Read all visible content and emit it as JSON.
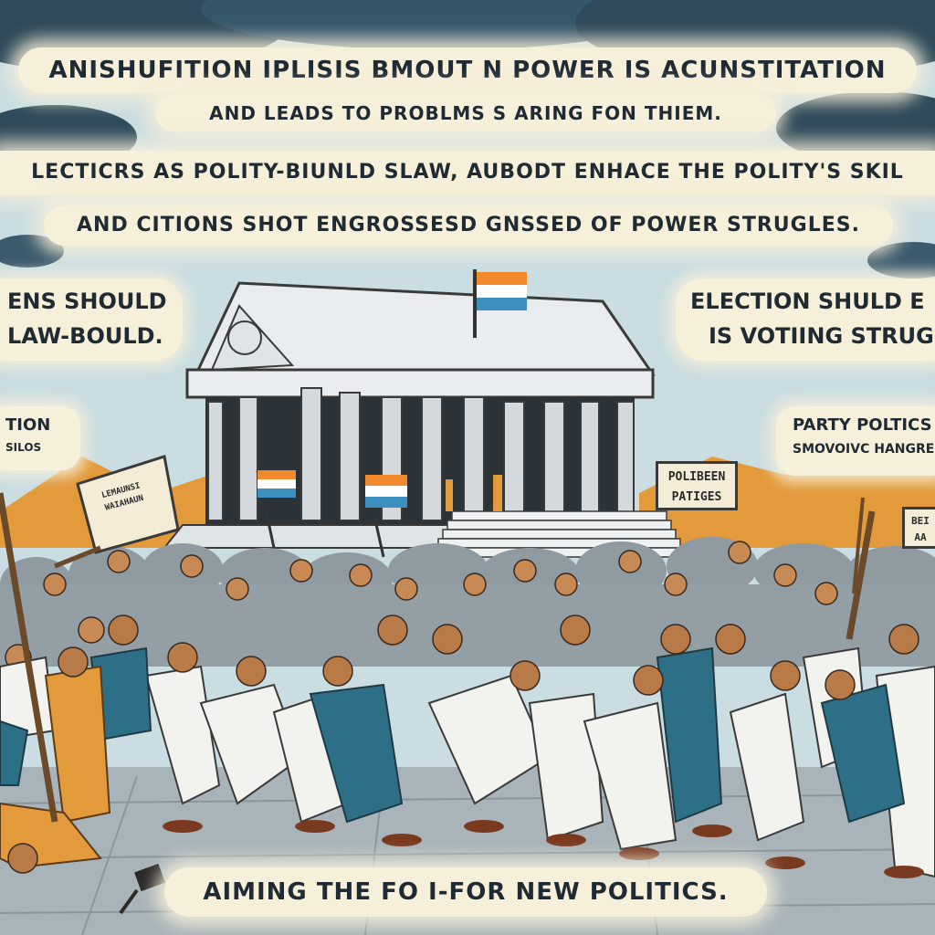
{
  "banners": {
    "line1": "ANISHUFITION IPLISIS BMOUT N POWER IS ACUNSTITATION",
    "line2": "AND LEADS TO PROBLMS S ARING FON THIEM.",
    "line3": "LECTICRS AS POLITY-BIUNLD SLAW, AUBODT ENHACE THE POLITY'S SKIL",
    "line4": "AND CITIONS SHOT ENGROSSESD GNSSED OF POWER STRUGLES.",
    "bottom": "AIMING THE FO I-FOR NEW POLITICS."
  },
  "side_left": {
    "line1": "ENS SHOULD",
    "line2": "LAW-BOULD.",
    "partial_title": "TION",
    "partial_sub": "SILOS"
  },
  "side_right": {
    "line1": "ELECTION SHULD E",
    "line2": "IS VOTIING STRUGL",
    "party_title": "PARTY POLTICS",
    "party_sub": "SMOVOIVC HANGRE"
  },
  "signs": {
    "center_sign_line1": "POLIBEEN",
    "center_sign_line2": "PATIGES",
    "right_edge_sign_line1": "BEI",
    "right_edge_sign_line2": "AA",
    "left_sign": "LEMAUNSI WAIAHAUN"
  },
  "colors": {
    "sky": "#c9dde2",
    "cloud_dark": "#2f4a5a",
    "banner_bg": "#f6efd9",
    "ink": "#1f2a33",
    "crowd_white": "#f2f2ef",
    "crowd_teal": "#2d6f86",
    "orange_hills": "#e39a3b",
    "flag_saffron": "#f08a2c",
    "flag_blue": "#3d8fbf",
    "ground": "#a9b4ba"
  }
}
